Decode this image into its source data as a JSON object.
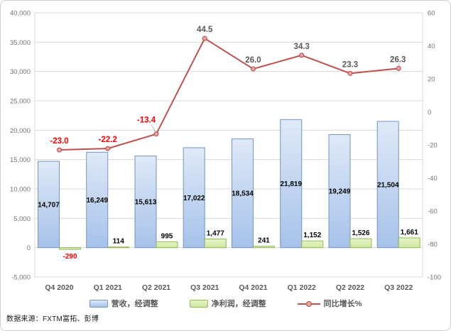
{
  "chart_data": {
    "type": "combo-bar-line",
    "categories": [
      "Q4 2020",
      "Q1 2021",
      "Q2 2021",
      "Q3 2021",
      "Q4 2021",
      "Q1 2022",
      "Q2 2022",
      "Q3 2022"
    ],
    "series": [
      {
        "name": "营收，经调整",
        "type": "bar",
        "axis": "left",
        "values": [
          14707,
          16249,
          15613,
          17022,
          18534,
          21819,
          19249,
          21504
        ]
      },
      {
        "name": "净利润，经调整",
        "type": "bar",
        "axis": "left",
        "values": [
          -290,
          114,
          995,
          1477,
          241,
          1152,
          1526,
          1661
        ]
      },
      {
        "name": "同比增长%",
        "type": "line",
        "axis": "right",
        "values": [
          -23.0,
          -22.2,
          -13.4,
          44.5,
          26.0,
          34.3,
          23.3,
          26.3
        ]
      }
    ],
    "axes": {
      "left": {
        "min": -5000,
        "max": 40000,
        "step": 5000,
        "ticks": [
          40000,
          35000,
          30000,
          25000,
          20000,
          15000,
          10000,
          5000,
          0,
          -5000
        ]
      },
      "right": {
        "min": -100,
        "max": 60,
        "step": 20,
        "ticks": [
          60,
          40,
          20,
          0,
          -20,
          -40,
          -60,
          -80,
          -100
        ]
      }
    },
    "grid": "horizontal-left-ticks",
    "legend_position": "bottom",
    "colors": {
      "revenue_fill_top": "#dfe9f8",
      "revenue_fill_bottom": "#a6c2e9",
      "revenue_border": "#7296c4",
      "profit_fill_top": "#e6f3c8",
      "profit_fill_bottom": "#cfe8a0",
      "profit_border": "#94b953",
      "growth_line": "#c0504d",
      "marker_fill": "#e4a4a1",
      "marker_border": "#b94743",
      "negative_label": "#ff0000",
      "bar_label": "#000000",
      "line_label": "#595959",
      "axis_label": "#737373",
      "category_label": "#595959",
      "gridline": "#d9d9d9",
      "leader_line": "#a6a6a6"
    }
  },
  "legend": {
    "items": [
      {
        "label": "营收，经调整"
      },
      {
        "label": "净利润，经调整"
      },
      {
        "label": "同比增长%"
      }
    ]
  },
  "footer": {
    "source": "数据来源：FXTM富拓、彭博"
  }
}
